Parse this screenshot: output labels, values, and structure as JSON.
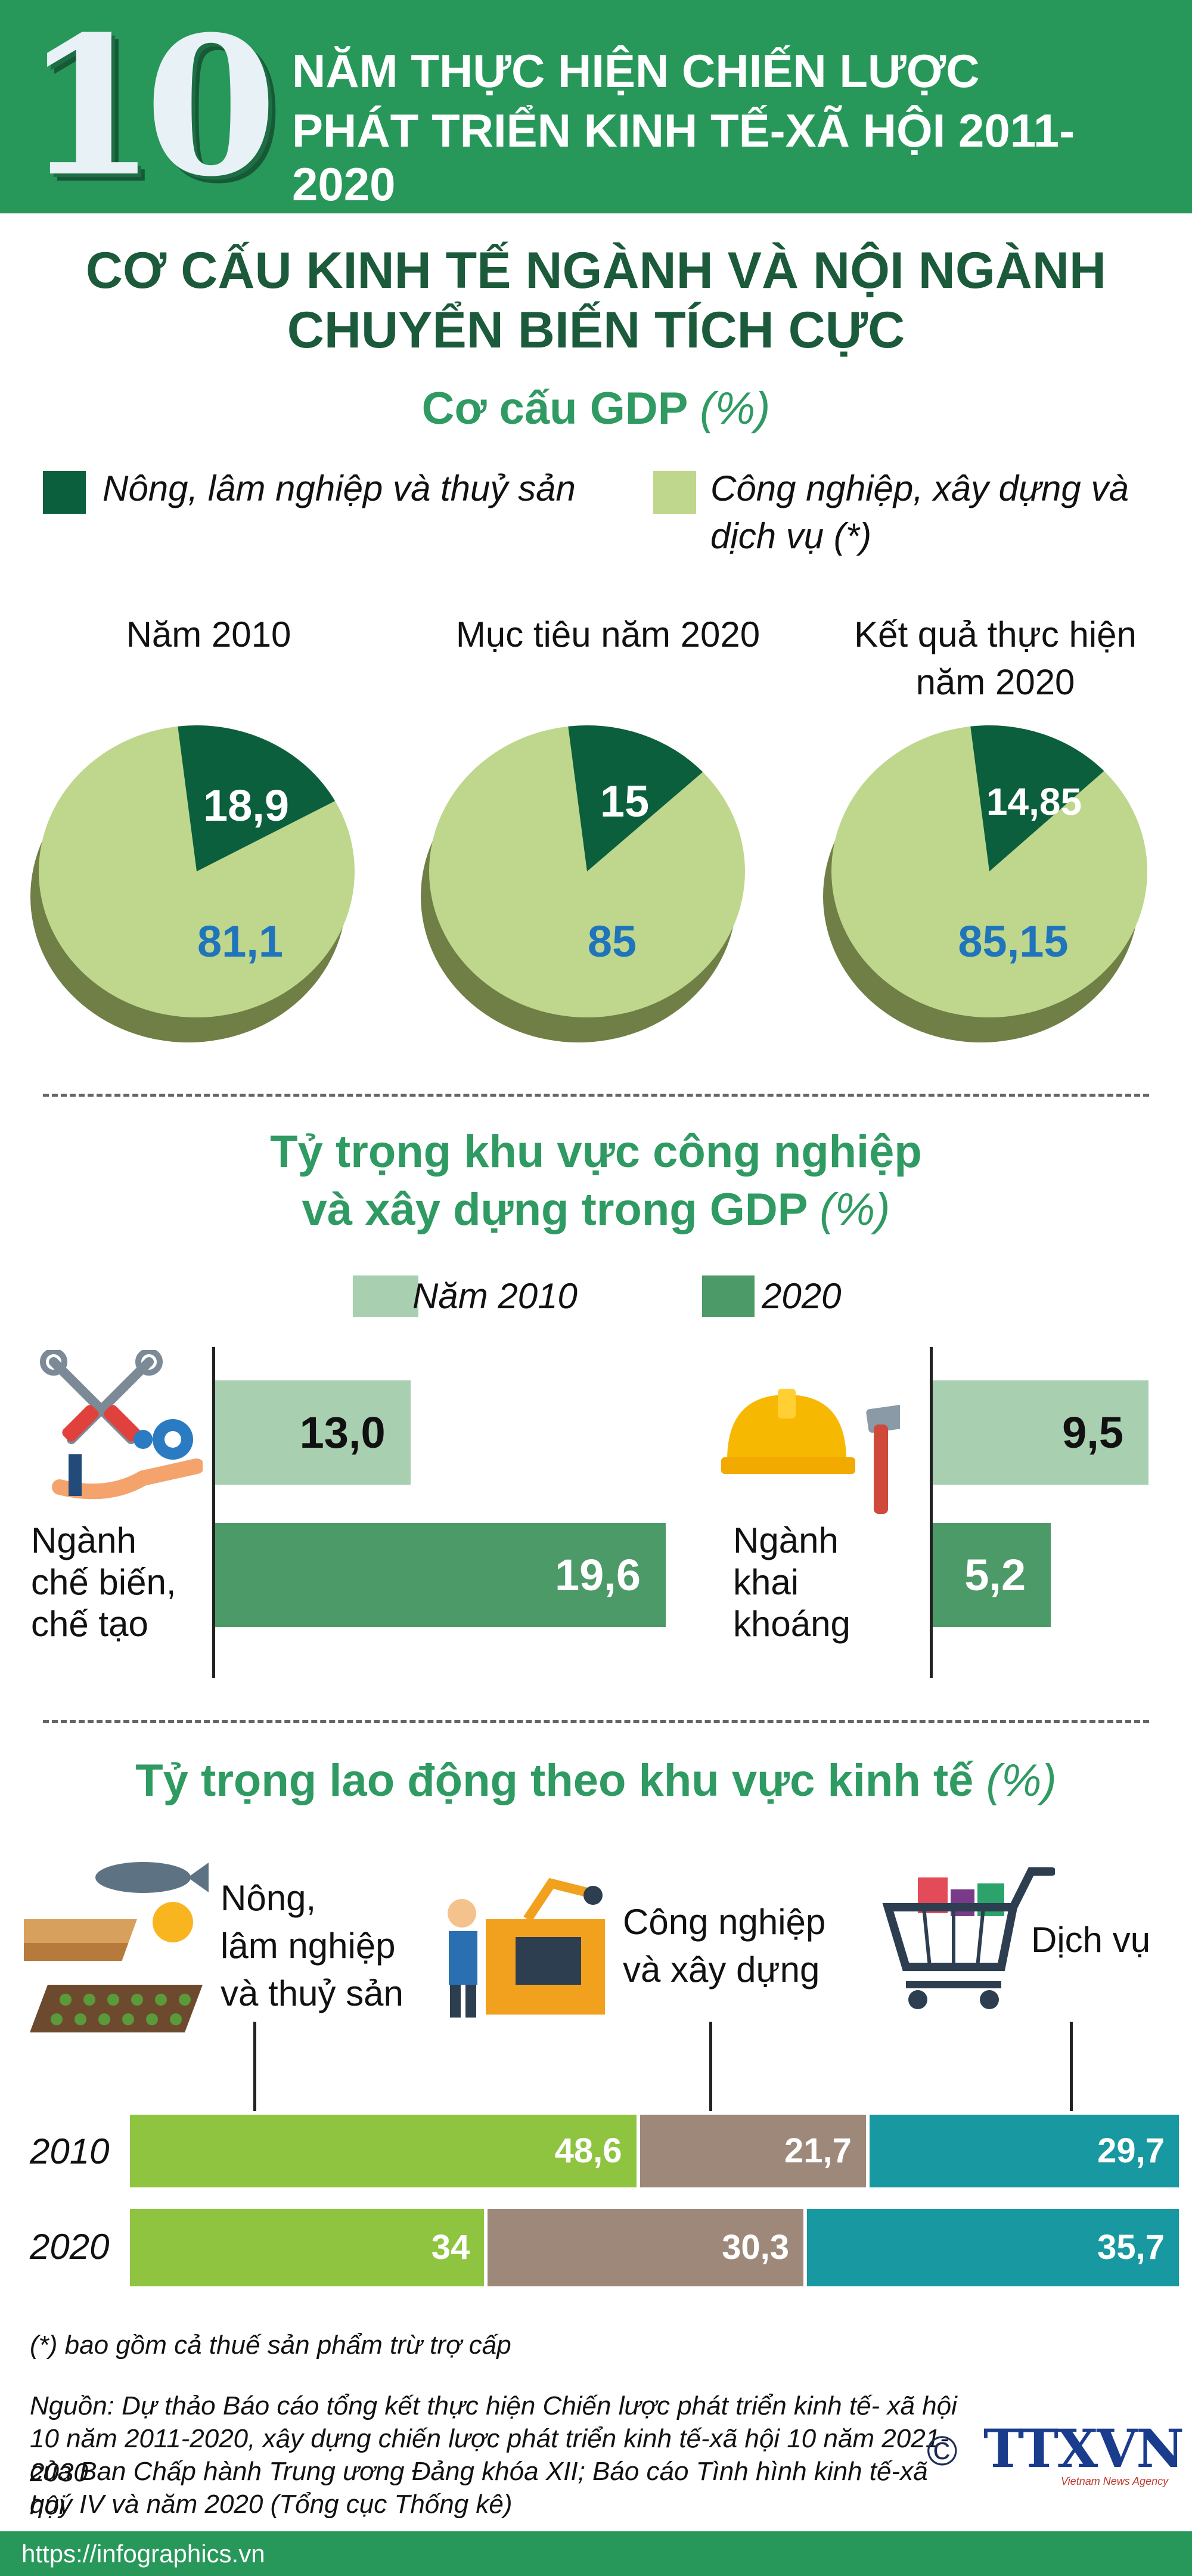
{
  "header": {
    "number": "10",
    "line1": "NĂM THỰC HIỆN CHIẾN LƯỢC",
    "line2": "PHÁT TRIỂN KINH TẾ-XÃ HỘI 2011-2020"
  },
  "main_title": {
    "line1": "CƠ CẤU KINH TẾ NGÀNH VÀ NỘI NGÀNH",
    "line2": "CHUYỂN BIẾN TÍCH CỰC"
  },
  "colors": {
    "dark_green": "#0b5f3c",
    "light_green": "#bed78d",
    "pie_side": "#707f45",
    "bar_2010": "#a9cfb1",
    "bar_2020": "#4c9a67",
    "labor_agri": "#8ec43f",
    "labor_ind": "#9e887a",
    "labor_serv": "#1898a0",
    "value_blue": "#1f74bb"
  },
  "gdp": {
    "title": "Cơ cấu GDP",
    "unit": "(%)",
    "legend_agri": "Nông, lâm nghiệp và thuỷ sản",
    "legend_ind_line1": "Công nghiệp, xây dựng và",
    "legend_ind_line2": "dịch vụ (*)",
    "pies": [
      {
        "label_line1": "Năm 2010",
        "label_line2": "",
        "agri_text": "18,9",
        "ind_text": "81,1"
      },
      {
        "label_line1": "Mục tiêu năm 2020",
        "label_line2": "",
        "agri_text": "15",
        "ind_text": "85"
      },
      {
        "label_line1": "Kết quả thực hiện",
        "label_line2": "năm 2020",
        "agri_text": "14,85",
        "ind_text": "85,15"
      }
    ]
  },
  "industry": {
    "title_line1": "Tỷ trọng khu vực công nghiệp",
    "title_line2": "và xây dựng trong GDP",
    "unit": "(%)",
    "legend_2010": "Năm 2010",
    "legend_2020": "2020",
    "manuf_label": [
      "Ngành",
      "chế biến,",
      "chế tạo"
    ],
    "mining_label": [
      "Ngành",
      "khai",
      "khoáng"
    ],
    "manuf_2010_text": "13,0",
    "manuf_2020_text": "19,6",
    "mining_2010_text": "9,5",
    "mining_2020_text": "5,2"
  },
  "labor": {
    "title": "Tỷ trọng lao động theo khu vực kinh tế",
    "unit": "(%)",
    "cat_agri": [
      "Nông,",
      "lâm nghiệp",
      "và thuỷ sản"
    ],
    "cat_ind": [
      "Công nghiệp",
      "và xây dựng"
    ],
    "cat_serv": "Dịch vụ",
    "year_2010": "2010",
    "year_2020": "2020",
    "v2010_agri": "48,6",
    "v2010_ind": "21,7",
    "v2010_serv": "29,7",
    "v2020_agri": "34",
    "v2020_ind": "30,3",
    "v2020_serv": "35,7"
  },
  "footer": {
    "note": "(*) bao gồm cả thuế sản phẩm trừ trợ cấp",
    "source_lines": [
      "Nguồn: Dự thảo Báo cáo tổng kết thực hiện Chiến lược phát triển kinh tế- xã hội",
      "10 năm 2011-2020, xây dựng chiến lược phát triển kinh tế-xã hội 10 năm 2021-2030",
      "của Ban Chấp hành Trung ương Đảng khóa XII; Báo cáo Tình hình kinh tế-xã hội",
      "quý IV và năm 2020 (Tổng cục Thống kê)"
    ],
    "copyright": "©",
    "logo_text": "TTXVN",
    "logo_sub": "Vietnam News Agency",
    "url": "https://infographics.vn"
  },
  "chart_data": [
    {
      "type": "pie",
      "title": "Năm 2010",
      "categories": [
        "Nông, lâm nghiệp và thuỷ sản",
        "Công nghiệp, xây dựng và dịch vụ (*)"
      ],
      "values": [
        18.9,
        81.1
      ]
    },
    {
      "type": "pie",
      "title": "Mục tiêu năm 2020",
      "categories": [
        "Nông, lâm nghiệp và thuỷ sản",
        "Công nghiệp, xây dựng và dịch vụ (*)"
      ],
      "values": [
        15,
        85
      ]
    },
    {
      "type": "pie",
      "title": "Kết quả thực hiện năm 2020",
      "categories": [
        "Nông, lâm nghiệp và thuỷ sản",
        "Công nghiệp, xây dựng và dịch vụ (*)"
      ],
      "values": [
        14.85,
        85.15
      ]
    },
    {
      "type": "bar",
      "title": "Tỷ trọng khu vực công nghiệp và xây dựng trong GDP (%)",
      "categories": [
        "Ngành chế biến, chế tạo",
        "Ngành khai khoáng"
      ],
      "series": [
        {
          "name": "Năm 2010",
          "values": [
            13.0,
            9.5
          ]
        },
        {
          "name": "2020",
          "values": [
            19.6,
            5.2
          ]
        }
      ]
    },
    {
      "type": "bar",
      "title": "Tỷ trọng lao động theo khu vực kinh tế (%)",
      "categories": [
        "2010",
        "2020"
      ],
      "series": [
        {
          "name": "Nông, lâm nghiệp và thuỷ sản",
          "values": [
            48.6,
            34
          ]
        },
        {
          "name": "Công nghiệp và xây dựng",
          "values": [
            21.7,
            30.3
          ]
        },
        {
          "name": "Dịch vụ",
          "values": [
            29.7,
            35.7
          ]
        }
      ]
    }
  ]
}
